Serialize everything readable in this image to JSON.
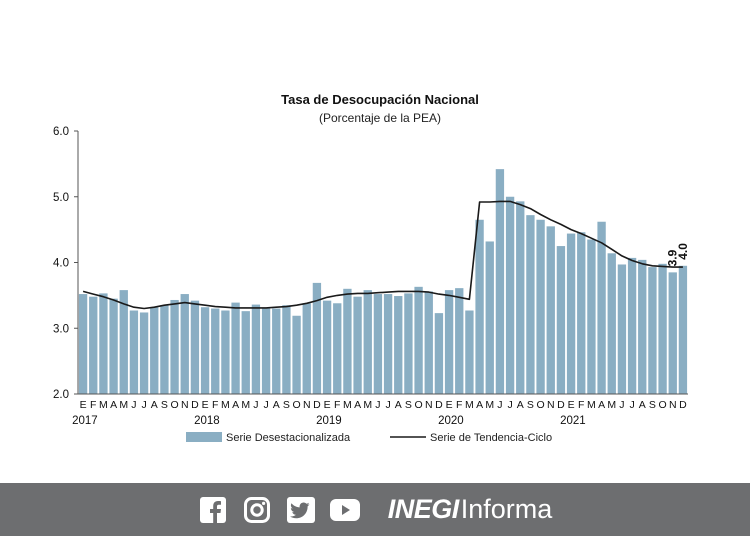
{
  "chart_data": {
    "type": "bar",
    "title": "Tasa de Desocupación Nacional",
    "subtitle": "(Porcentaje de la PEA)",
    "ylim": [
      2.0,
      6.0
    ],
    "yticks": [
      "2.0",
      "3.0",
      "4.0",
      "5.0",
      "6.0"
    ],
    "month_labels": [
      "E",
      "F",
      "M",
      "A",
      "M",
      "J",
      "J",
      "A",
      "S",
      "O",
      "N",
      "D"
    ],
    "years": [
      "2017",
      "2018",
      "2019",
      "2020",
      "2021"
    ],
    "legend": {
      "bars": "Serie Desestacionalizada",
      "line": "Serie de Tendencia-Ciclo"
    },
    "bar_color": "#8aaec3",
    "line_color": "#1a1a1a",
    "series": [
      {
        "name": "Serie Desestacionalizada",
        "kind": "bar",
        "values": [
          3.52,
          3.48,
          3.53,
          3.45,
          3.58,
          3.27,
          3.24,
          3.32,
          3.35,
          3.43,
          3.52,
          3.42,
          3.32,
          3.3,
          3.27,
          3.39,
          3.26,
          3.36,
          3.3,
          3.3,
          3.35,
          3.19,
          3.38,
          3.69,
          3.42,
          3.38,
          3.6,
          3.48,
          3.58,
          3.52,
          3.52,
          3.49,
          3.53,
          3.63,
          3.56,
          3.23,
          3.58,
          3.61,
          3.27,
          4.65,
          4.32,
          5.42,
          5.0,
          4.93,
          4.72,
          4.65,
          4.55,
          4.25,
          4.44,
          4.46,
          4.35,
          4.62,
          4.14,
          3.97,
          4.07,
          4.04,
          3.93,
          3.98,
          3.85,
          3.95
        ]
      },
      {
        "name": "Serie de Tendencia-Ciclo",
        "kind": "line",
        "values": [
          3.56,
          3.52,
          3.48,
          3.43,
          3.37,
          3.32,
          3.3,
          3.32,
          3.35,
          3.37,
          3.39,
          3.37,
          3.35,
          3.33,
          3.32,
          3.31,
          3.31,
          3.31,
          3.31,
          3.32,
          3.33,
          3.35,
          3.38,
          3.42,
          3.47,
          3.5,
          3.52,
          3.53,
          3.53,
          3.54,
          3.55,
          3.56,
          3.56,
          3.56,
          3.55,
          3.52,
          3.5,
          3.47,
          3.44,
          4.92,
          4.92,
          4.93,
          4.93,
          4.88,
          4.82,
          4.73,
          4.65,
          4.58,
          4.5,
          4.44,
          4.37,
          4.3,
          4.2,
          4.1,
          4.03,
          3.98,
          3.95,
          3.94,
          3.93,
          3.93
        ]
      }
    ],
    "annotations": [
      {
        "text": "3.9",
        "index": 58
      },
      {
        "text": "4.0",
        "index": 59
      }
    ]
  },
  "footer": {
    "icons": [
      "facebook-icon",
      "instagram-icon",
      "twitter-icon",
      "youtube-icon"
    ],
    "brand_strong": "INEGI",
    "brand_light": "Informa",
    "bg_color": "#6d6e70"
  }
}
